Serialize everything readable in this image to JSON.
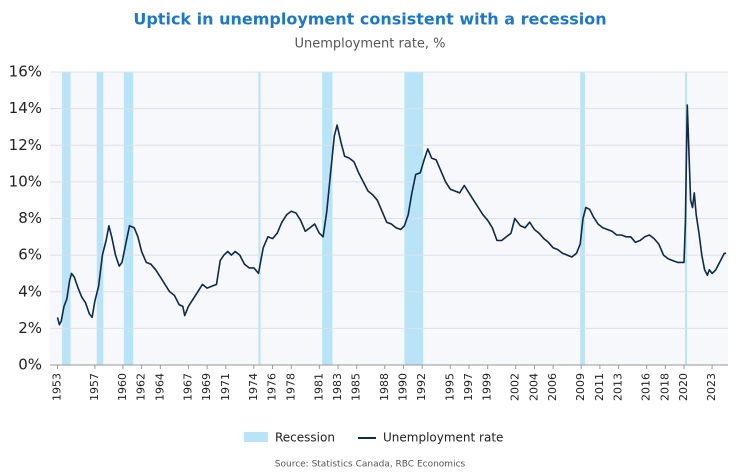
{
  "chart_data": {
    "type": "line",
    "title": "Uptick in unemployment consistent with a recession",
    "subtitle": "Unemployment rate, %",
    "source": "Source: Statistics Canada, RBC Economics",
    "xlim": [
      1952.2,
      2024.7
    ],
    "xticks": [
      1953,
      1957,
      1960,
      1962,
      1964,
      1967,
      1969,
      1971,
      1974,
      1976,
      1978,
      1981,
      1983,
      1985,
      1988,
      1990,
      1992,
      1995,
      1997,
      1999,
      2002,
      2004,
      2006,
      2009,
      2011,
      2013,
      2016,
      2018,
      2020,
      2023
    ],
    "ylim": [
      0,
      16
    ],
    "yticks": [
      {
        "value": 0,
        "label": "0%"
      },
      {
        "value": 2,
        "label": "2%"
      },
      {
        "value": 4,
        "label": "4%"
      },
      {
        "value": 6,
        "label": "6%"
      },
      {
        "value": 8,
        "label": "8%"
      },
      {
        "value": 10,
        "label": "10%"
      },
      {
        "value": 12,
        "label": "12%"
      },
      {
        "value": 14,
        "label": "14%"
      },
      {
        "value": 16,
        "label": "16%"
      }
    ],
    "grid": true,
    "recessions": {
      "name": "Recession",
      "color": "#b9e3f6",
      "spans": [
        [
          1953.5,
          1954.4
        ],
        [
          1957.2,
          1957.9
        ],
        [
          1960.1,
          1961.1
        ],
        [
          1974.5,
          1974.7
        ],
        [
          1981.3,
          1982.4
        ],
        [
          1990.1,
          1992.1
        ],
        [
          2008.9,
          2009.4
        ],
        [
          2020.1,
          2020.3
        ]
      ]
    },
    "series": [
      {
        "name": "Unemployment rate",
        "color": "#0d2a4a",
        "x": [
          1953.0,
          1953.2,
          1953.4,
          1953.7,
          1954.0,
          1954.3,
          1954.5,
          1954.8,
          1955.2,
          1955.6,
          1956.0,
          1956.4,
          1956.7,
          1957.0,
          1957.4,
          1957.8,
          1958.2,
          1958.5,
          1958.8,
          1959.2,
          1959.6,
          1959.9,
          1960.3,
          1960.7,
          1961.2,
          1961.6,
          1962.0,
          1962.5,
          1963.0,
          1963.5,
          1964.0,
          1964.5,
          1965.0,
          1965.5,
          1966.0,
          1966.4,
          1966.6,
          1967.0,
          1967.5,
          1968.0,
          1968.5,
          1969.0,
          1969.5,
          1970.0,
          1970.4,
          1970.8,
          1971.2,
          1971.6,
          1972.0,
          1972.5,
          1973.0,
          1973.5,
          1974.0,
          1974.5,
          1975.0,
          1975.5,
          1976.0,
          1976.5,
          1977.0,
          1977.5,
          1978.0,
          1978.5,
          1979.0,
          1979.5,
          1980.0,
          1980.5,
          1981.0,
          1981.4,
          1981.8,
          1982.2,
          1982.6,
          1982.9,
          1983.3,
          1983.7,
          1984.2,
          1984.7,
          1985.2,
          1985.7,
          1986.2,
          1986.7,
          1987.2,
          1987.7,
          1988.2,
          1988.7,
          1989.2,
          1989.7,
          1990.1,
          1990.5,
          1990.9,
          1991.3,
          1991.8,
          1992.2,
          1992.6,
          1993.0,
          1993.5,
          1994.0,
          1994.5,
          1995.0,
          1995.5,
          1996.0,
          1996.5,
          1997.0,
          1997.5,
          1998.0,
          1998.5,
          1999.0,
          1999.5,
          2000.0,
          2000.5,
          2001.0,
          2001.5,
          2001.9,
          2002.5,
          2003.0,
          2003.5,
          2004.0,
          2004.5,
          2005.0,
          2005.5,
          2006.0,
          2006.5,
          2007.0,
          2007.5,
          2008.0,
          2008.5,
          2008.9,
          2009.2,
          2009.5,
          2009.9,
          2010.3,
          2010.8,
          2011.3,
          2011.8,
          2012.3,
          2012.8,
          2013.3,
          2013.8,
          2014.3,
          2014.8,
          2015.3,
          2015.8,
          2016.3,
          2016.8,
          2017.3,
          2017.8,
          2018.3,
          2018.8,
          2019.3,
          2019.8,
          2020.0,
          2020.15,
          2020.3,
          2020.35,
          2020.5,
          2020.7,
          2020.9,
          2021.1,
          2021.3,
          2021.6,
          2021.9,
          2022.2,
          2022.5,
          2022.7,
          2023.0,
          2023.4,
          2023.7,
          2024.0,
          2024.3,
          2024.5
        ],
        "values": [
          2.6,
          2.2,
          2.4,
          3.2,
          3.6,
          4.6,
          5.0,
          4.8,
          4.2,
          3.7,
          3.4,
          2.8,
          2.6,
          3.5,
          4.3,
          6.0,
          6.8,
          7.6,
          7.0,
          6.0,
          5.4,
          5.6,
          6.6,
          7.6,
          7.5,
          7.0,
          6.2,
          5.6,
          5.5,
          5.2,
          4.8,
          4.4,
          4.0,
          3.8,
          3.3,
          3.2,
          2.7,
          3.2,
          3.6,
          4.0,
          4.4,
          4.2,
          4.3,
          4.4,
          5.7,
          6.0,
          6.2,
          6.0,
          6.2,
          6.0,
          5.5,
          5.3,
          5.3,
          5.0,
          6.4,
          7.0,
          6.9,
          7.2,
          7.8,
          8.2,
          8.4,
          8.3,
          7.9,
          7.3,
          7.5,
          7.7,
          7.2,
          7.0,
          8.4,
          10.5,
          12.5,
          13.1,
          12.2,
          11.4,
          11.3,
          11.1,
          10.5,
          10.0,
          9.5,
          9.3,
          9.0,
          8.4,
          7.8,
          7.7,
          7.5,
          7.4,
          7.6,
          8.2,
          9.4,
          10.4,
          10.5,
          11.2,
          11.8,
          11.3,
          11.2,
          10.6,
          10.0,
          9.6,
          9.5,
          9.4,
          9.8,
          9.4,
          9.0,
          8.6,
          8.2,
          7.9,
          7.5,
          6.8,
          6.8,
          7.0,
          7.2,
          8.0,
          7.6,
          7.5,
          7.8,
          7.4,
          7.2,
          6.9,
          6.7,
          6.4,
          6.3,
          6.1,
          6.0,
          5.9,
          6.1,
          6.6,
          8.0,
          8.6,
          8.5,
          8.1,
          7.7,
          7.5,
          7.4,
          7.3,
          7.1,
          7.1,
          7.0,
          7.0,
          6.7,
          6.8,
          7.0,
          7.1,
          6.9,
          6.6,
          6.0,
          5.8,
          5.7,
          5.6,
          5.6,
          5.6,
          7.8,
          13.0,
          14.2,
          12.0,
          9.0,
          8.6,
          9.4,
          8.2,
          7.2,
          6.0,
          5.2,
          4.9,
          5.2,
          5.0,
          5.2,
          5.5,
          5.8,
          6.1,
          6.1
        ]
      }
    ]
  }
}
